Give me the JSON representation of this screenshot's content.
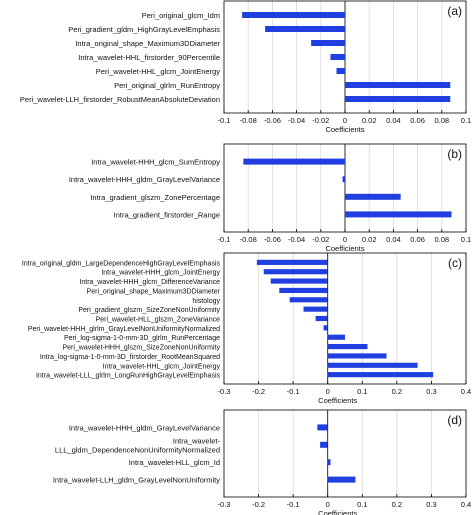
{
  "chart_data": [
    {
      "type": "bar",
      "panel_label": "(a)",
      "xlabel": "Coefficients",
      "xlim": [
        -0.1,
        0.1
      ],
      "xticks": [
        "-0.1",
        "-0.08",
        "-0.06",
        "-0.04",
        "-0.02",
        "0",
        "0.02",
        "0.04",
        "0.06",
        "0.08",
        "0.1"
      ],
      "xtick_values": [
        -0.1,
        -0.08,
        -0.06,
        -0.04,
        -0.02,
        0,
        0.02,
        0.04,
        0.06,
        0.08,
        0.1
      ],
      "grid": true,
      "bar_color": "#1f3fe0",
      "categories": [
        "Peri_original_glcm_Idm",
        "Peri_gradient_gldm_HighGrayLevelEmphasis",
        "Intra_original_shape_Maximum3DDiameter",
        "Intra_wavelet-HHL_firstorder_90Percentile",
        "Peri_wavelet-HHL_glcm_JointEnergy",
        "Peri_original_glrlm_RunEntropy",
        "Peri_wavelet-LLH_firstorder_RobustMeanAbsoluteDeviation"
      ],
      "values": [
        -0.085,
        -0.066,
        -0.028,
        -0.012,
        -0.007,
        0.087,
        0.087
      ]
    },
    {
      "type": "bar",
      "panel_label": "(b)",
      "xlabel": "Coefficients",
      "xlim": [
        -0.1,
        0.1
      ],
      "xticks": [
        "-0.1",
        "-0.08",
        "-0.06",
        "-0.04",
        "-0.02",
        "0",
        "0.02",
        "0.04",
        "0.06",
        "0.08",
        "0.1"
      ],
      "xtick_values": [
        -0.1,
        -0.08,
        -0.06,
        -0.04,
        -0.02,
        0,
        0.02,
        0.04,
        0.06,
        0.08,
        0.1
      ],
      "grid": true,
      "bar_color": "#1f3fe0",
      "categories": [
        "Intra_wavelet-HHH_glcm_SumEntropy",
        "Intra_wavelet-HHH_gldm_GrayLevelVariance",
        "Intra_gradient_glszm_ZonePercentage",
        "Intra_gradient_firstorder_Range"
      ],
      "values": [
        -0.084,
        -0.002,
        0.046,
        0.088
      ]
    },
    {
      "type": "bar",
      "panel_label": "(c)",
      "xlabel": "Coefficients",
      "xlim": [
        -0.3,
        0.4
      ],
      "xticks": [
        "-0.3",
        "-0.2",
        "-0.1",
        "0",
        "0.1",
        "0.2",
        "0.3",
        "0.4"
      ],
      "xtick_values": [
        -0.3,
        -0.2,
        -0.1,
        0,
        0.1,
        0.2,
        0.3,
        0.4
      ],
      "grid": true,
      "bar_color": "#1f3fe0",
      "categories": [
        "Intra_original_gldm_LargeDependenceHighGrayLevelEmphasis",
        "Intra_wavelet-HHH_glcm_JointEnergy",
        "Intra_wavelet-HHH_glcm_DifferenceVariance",
        "Peri_original_shape_Maximum3DDiameter",
        "histology",
        "Peri_gradient_glszm_SizeZoneNonUniformity",
        "Peri_wavelet-HLL_glszm_ZoneVariance",
        "Peri_wavelet-HHH_glrlm_GrayLevelNonUniformityNormalized",
        "Peri_log-sigma-1-0-mm-3D_glrlm_RunPercentage",
        "Peri_wavelet-HHH_glszm_SizeZoneNonUniformity",
        "Intra_log-sigma-1-0-mm-3D_firstorder_RootMeanSquared",
        "Intra_wavelet-HHL_glcm_JointEnergy",
        "Intra_wavelet-LLL_glrlm_LongRunHighGrayLevelEmphasis"
      ],
      "values": [
        -0.205,
        -0.185,
        -0.165,
        -0.14,
        -0.11,
        -0.07,
        -0.035,
        -0.012,
        0.05,
        0.115,
        0.17,
        0.26,
        0.305
      ]
    },
    {
      "type": "bar",
      "panel_label": "(d)",
      "xlabel": "Coefficients",
      "xlim": [
        -0.3,
        0.4
      ],
      "xticks": [
        "-0.3",
        "-0.2",
        "-0.1",
        "0",
        "0.1",
        "0.2",
        "0.3",
        "0.4"
      ],
      "xtick_values": [
        -0.3,
        -0.2,
        -0.1,
        0,
        0.1,
        0.2,
        0.3,
        0.4
      ],
      "grid": true,
      "bar_color": "#1f3fe0",
      "categories": [
        "Intra_wavelet-HHH_gldm_GrayLevelVariance",
        "Intra_wavelet-LLL_gldm_DependenceNonUniformityNormalized",
        "Intra_wavelet-HLL_glcm_Id",
        "Intra_wavelet-LLH_gldm_GrayLevelNonUniformity"
      ],
      "category_lines": [
        [
          "Intra_wavelet-HHH_gldm_GrayLevelVariance"
        ],
        [
          "Intra_wavelet-",
          "LLL_gldm_DependenceNonUniformityNormalized"
        ],
        [
          "Intra_wavelet-HLL_glcm_Id"
        ],
        [
          "Intra_wavelet-LLH_gldm_GrayLevelNonUniformity"
        ]
      ],
      "values": [
        -0.03,
        -0.022,
        0.008,
        0.08
      ]
    }
  ]
}
